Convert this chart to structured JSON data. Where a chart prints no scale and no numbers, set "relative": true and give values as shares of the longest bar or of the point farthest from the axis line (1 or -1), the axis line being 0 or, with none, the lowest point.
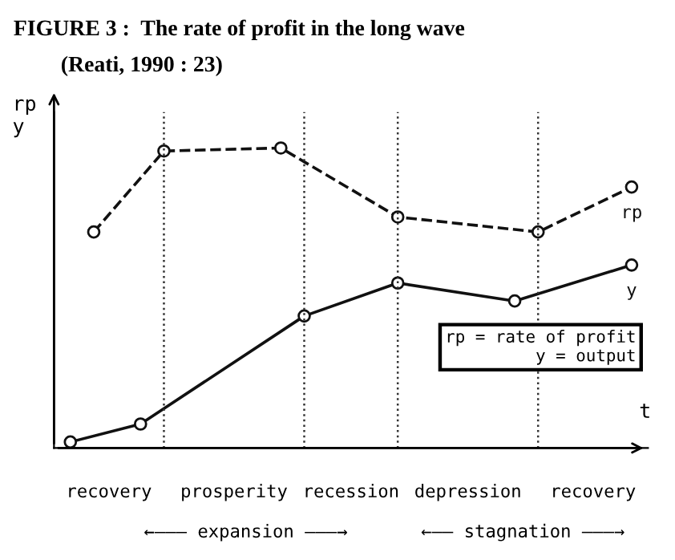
{
  "chart_data": {
    "type": "line",
    "relative": true,
    "title": "FIGURE 3 :  The rate of profit in the long wave",
    "subtitle": "(Reati, 1990 : 23)",
    "xlabel": "t",
    "ylabel": "rp\ny",
    "categories": [
      null,
      null,
      null,
      null,
      null,
      null,
      null,
      null,
      null,
      null,
      null,
      null,
      null,
      null,
      null,
      null,
      null,
      null,
      null,
      null,
      null,
      null,
      null,
      null,
      null
    ],
    "series": [
      {
        "name": "rp",
        "color": "#111111",
        "line_style": "dashed",
        "marker": "circle",
        "values": [
          null,
          0.72,
          null,
          null,
          0.99,
          null,
          null,
          null,
          null,
          1.0,
          null,
          null,
          null,
          null,
          0.77,
          null,
          null,
          null,
          null,
          null,
          0.72,
          null,
          null,
          null,
          0.87
        ]
      },
      {
        "name": "y",
        "color": "#111111",
        "line_style": "solid",
        "marker": "circle",
        "values": [
          0.02,
          null,
          null,
          0.08,
          null,
          null,
          null,
          null,
          null,
          null,
          0.44,
          null,
          null,
          null,
          0.55,
          null,
          null,
          null,
          null,
          0.49,
          null,
          null,
          null,
          null,
          0.61
        ]
      }
    ],
    "annotations": [
      "rp = rate of profit\ny = output",
      "recovery",
      "prosperity",
      "recession",
      "depression",
      "recovery",
      "←——— expansion ———→",
      "←—— stagnation ———→"
    ],
    "legend": "right",
    "grid": "x"
  }
}
